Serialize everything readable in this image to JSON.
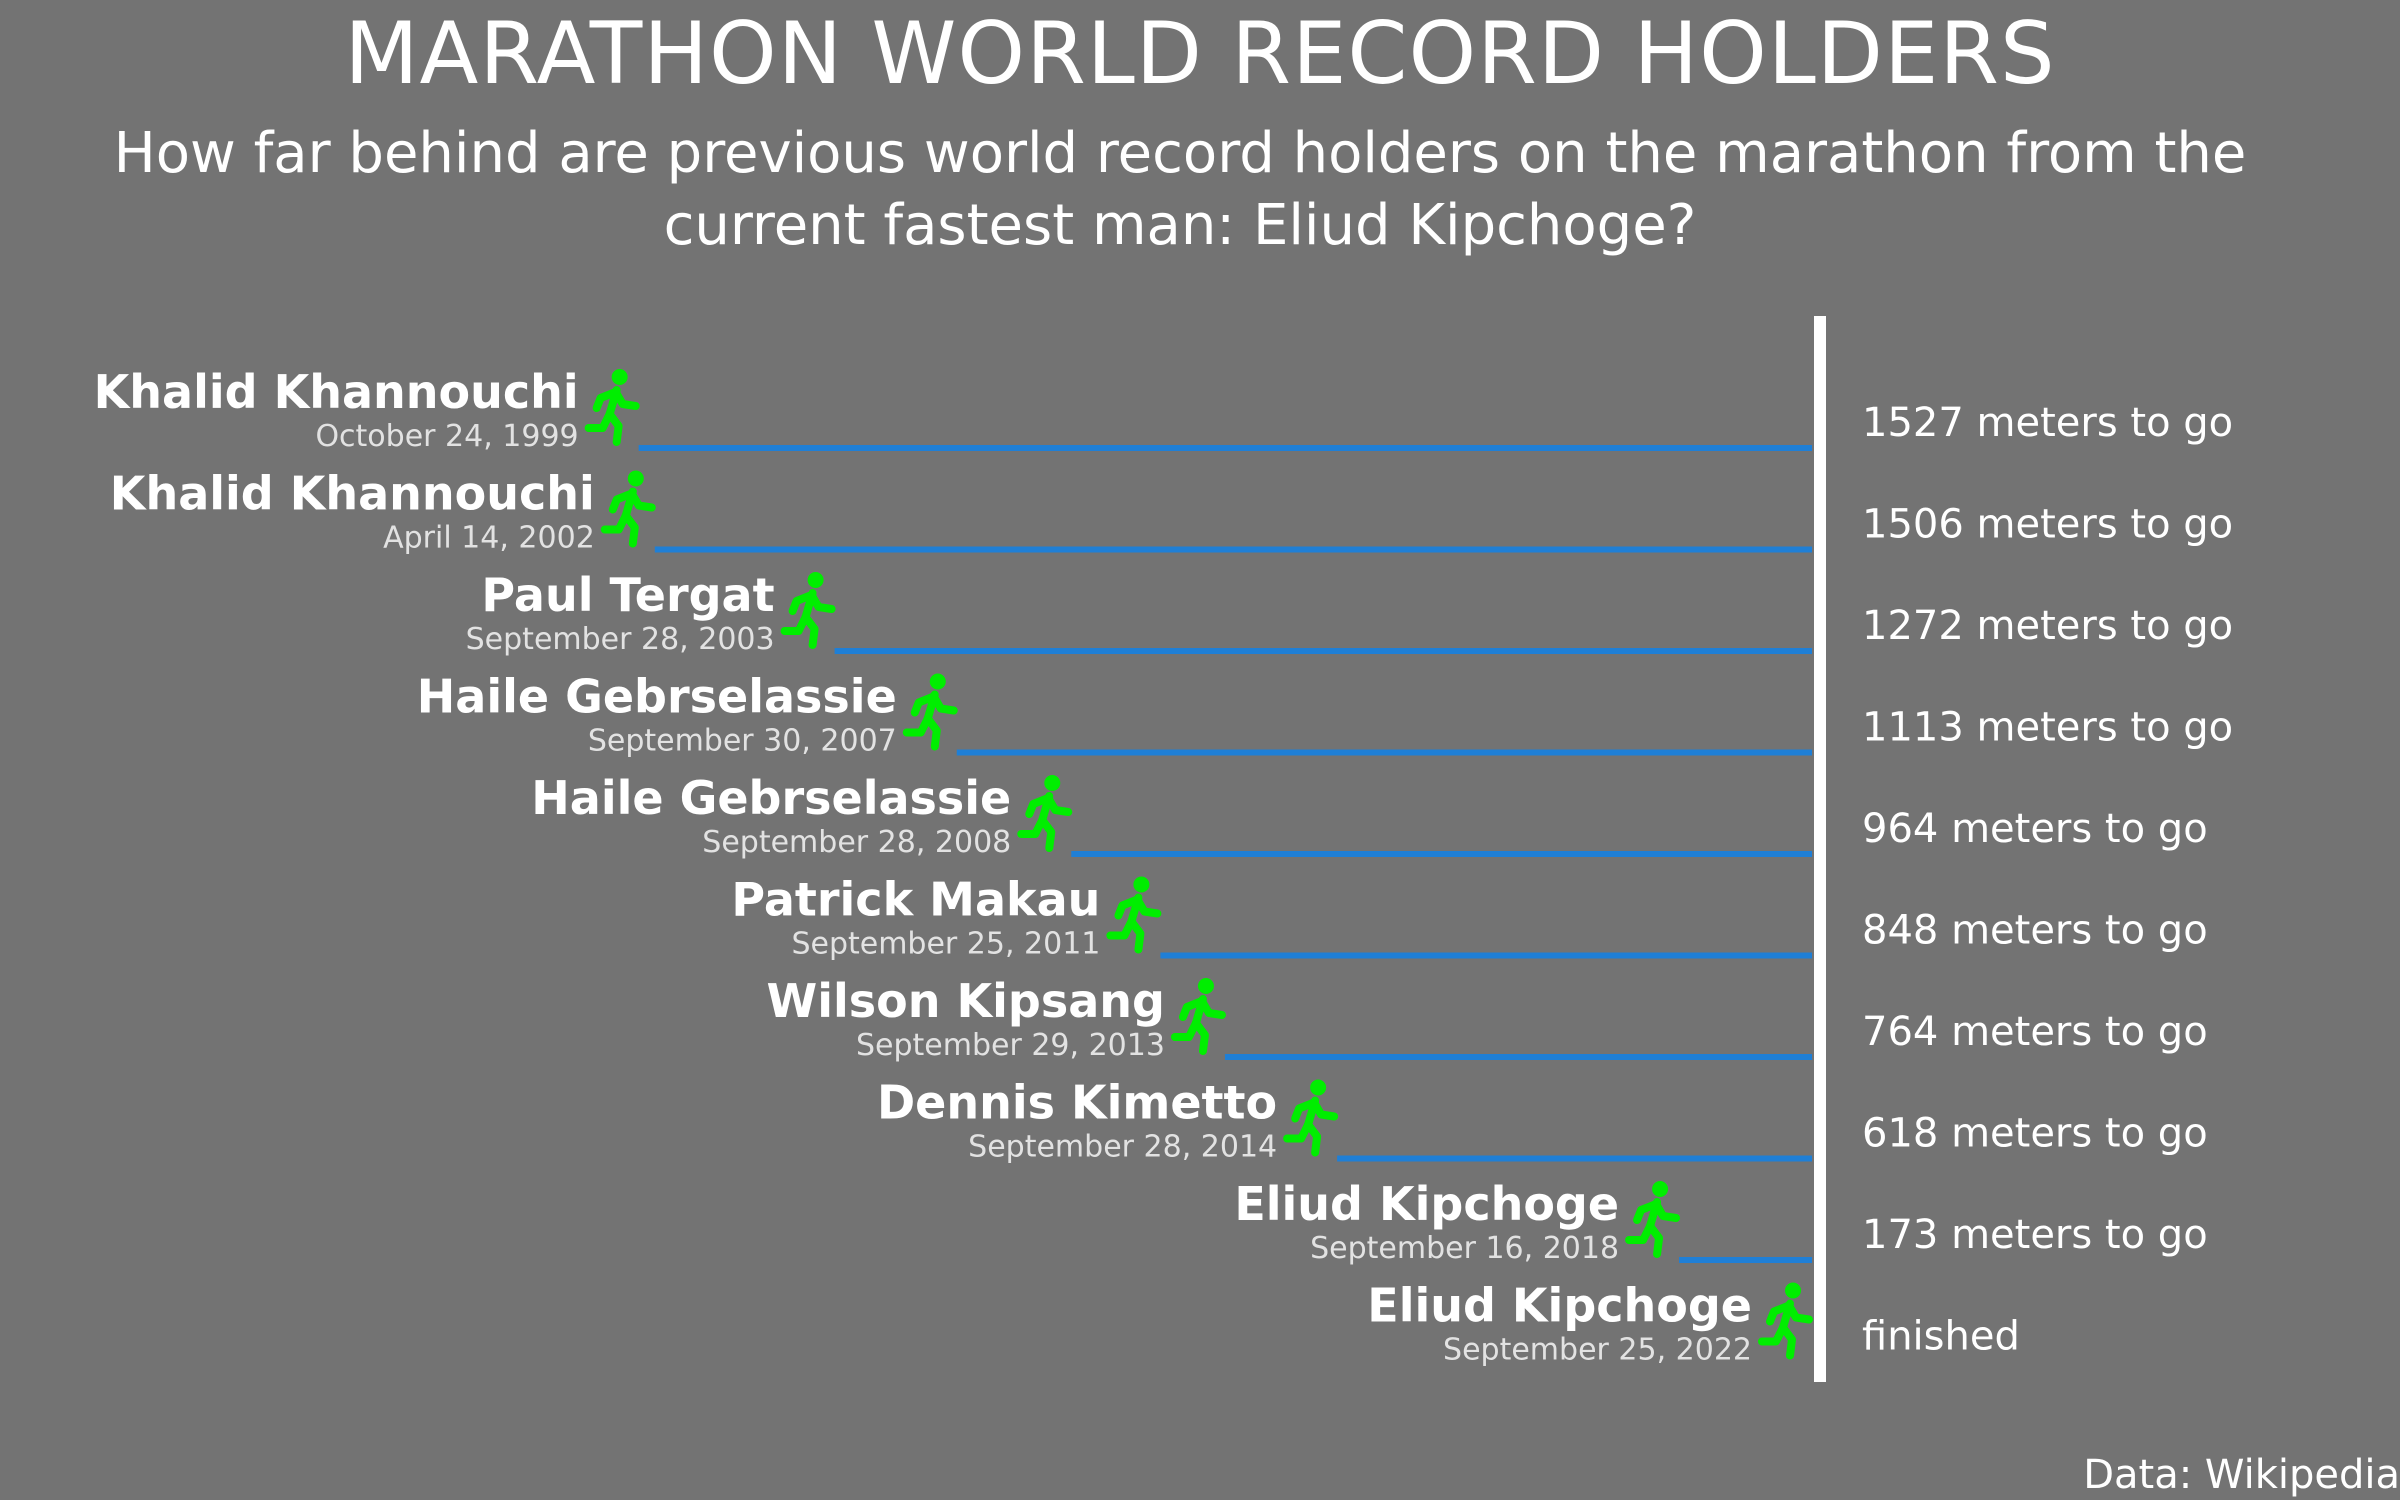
{
  "chart_data": {
    "type": "bar",
    "title": "MARATHON WORLD RECORD HOLDERS",
    "subtitle": "How far behind are previous world record holders on the marathon from the current fastest man: Eliud Kipchoge?",
    "source": "Data: Wikipedia",
    "colors": {
      "background": "#737373",
      "line": "#1f7fd6",
      "runner": "#00ee00",
      "finish_line": "#ffffff"
    },
    "records": [
      {
        "name": "Khalid Khannouchi",
        "date": "October 24, 1999",
        "meters_behind": 1527,
        "label": "1527 meters to go"
      },
      {
        "name": "Khalid Khannouchi",
        "date": "April 14, 2002",
        "meters_behind": 1506,
        "label": "1506 meters to go"
      },
      {
        "name": "Paul Tergat",
        "date": "September 28, 2003",
        "meters_behind": 1272,
        "label": "1272 meters to go"
      },
      {
        "name": "Haile Gebrselassie",
        "date": "September 30, 2007",
        "meters_behind": 1113,
        "label": "1113 meters to go"
      },
      {
        "name": "Haile Gebrselassie",
        "date": "September 28, 2008",
        "meters_behind": 964,
        "label": "964 meters to go"
      },
      {
        "name": "Patrick Makau",
        "date": "September 25, 2011",
        "meters_behind": 848,
        "label": "848 meters to go"
      },
      {
        "name": "Wilson Kipsang",
        "date": "September 29, 2013",
        "meters_behind": 764,
        "label": "764 meters to go"
      },
      {
        "name": "Dennis Kimetto",
        "date": "September 28, 2014",
        "meters_behind": 618,
        "label": "618 meters to go"
      },
      {
        "name": "Eliud Kipchoge",
        "date": "September 16, 2018",
        "meters_behind": 173,
        "label": "173 meters to go"
      },
      {
        "name": "Eliud Kipchoge",
        "date": "September 25, 2022",
        "meters_behind": 0,
        "label": "finished"
      }
    ]
  }
}
